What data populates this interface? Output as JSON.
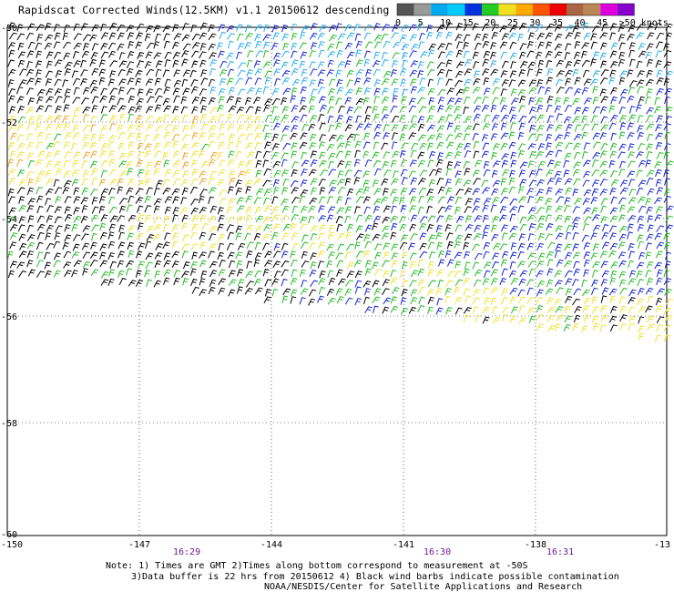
{
  "title": "Rapidscat Corrected Winds(12.5KM) v1.1 20150612 descending",
  "colorbar": {
    "colors": [
      "#555555",
      "#999999",
      "#00aaee",
      "#00ccff",
      "#0033dd",
      "#22cc22",
      "#f0e020",
      "#ffaa00",
      "#ff5500",
      "#ee0000",
      "#aa6644",
      "#bb8855",
      "#dd00dd",
      "#8800cc"
    ],
    "labels": [
      "0",
      "5",
      "10",
      "15",
      "20",
      "25",
      "30",
      "35",
      "40",
      "45",
      ">50 knots"
    ]
  },
  "axes": {
    "lon_labels": [
      "-150",
      "-147",
      "-144",
      "-141",
      "-138",
      "-13"
    ],
    "lat_labels": [
      "-50",
      "-52",
      "-54",
      "-56",
      "-58",
      "-60"
    ],
    "time_labels": [
      "16:29",
      "16:30",
      "16:31"
    ]
  },
  "legend_colors": {
    "contaminated": "#000000",
    "yellow": "#f2e030",
    "orange": "#f0a020",
    "green": "#22bb22",
    "blue": "#1122cc",
    "cyan": "#22aaee"
  },
  "notes": {
    "line1": "Note: 1) Times are GMT 2)Times along bottom correspond to measurement at -50S",
    "line2": "3)Data buffer is 22 hrs from 20150612 4) Black wind barbs indicate possible contamination",
    "line3": "NOAA/NESDIS/Center for Satellite Applications and Research"
  }
}
